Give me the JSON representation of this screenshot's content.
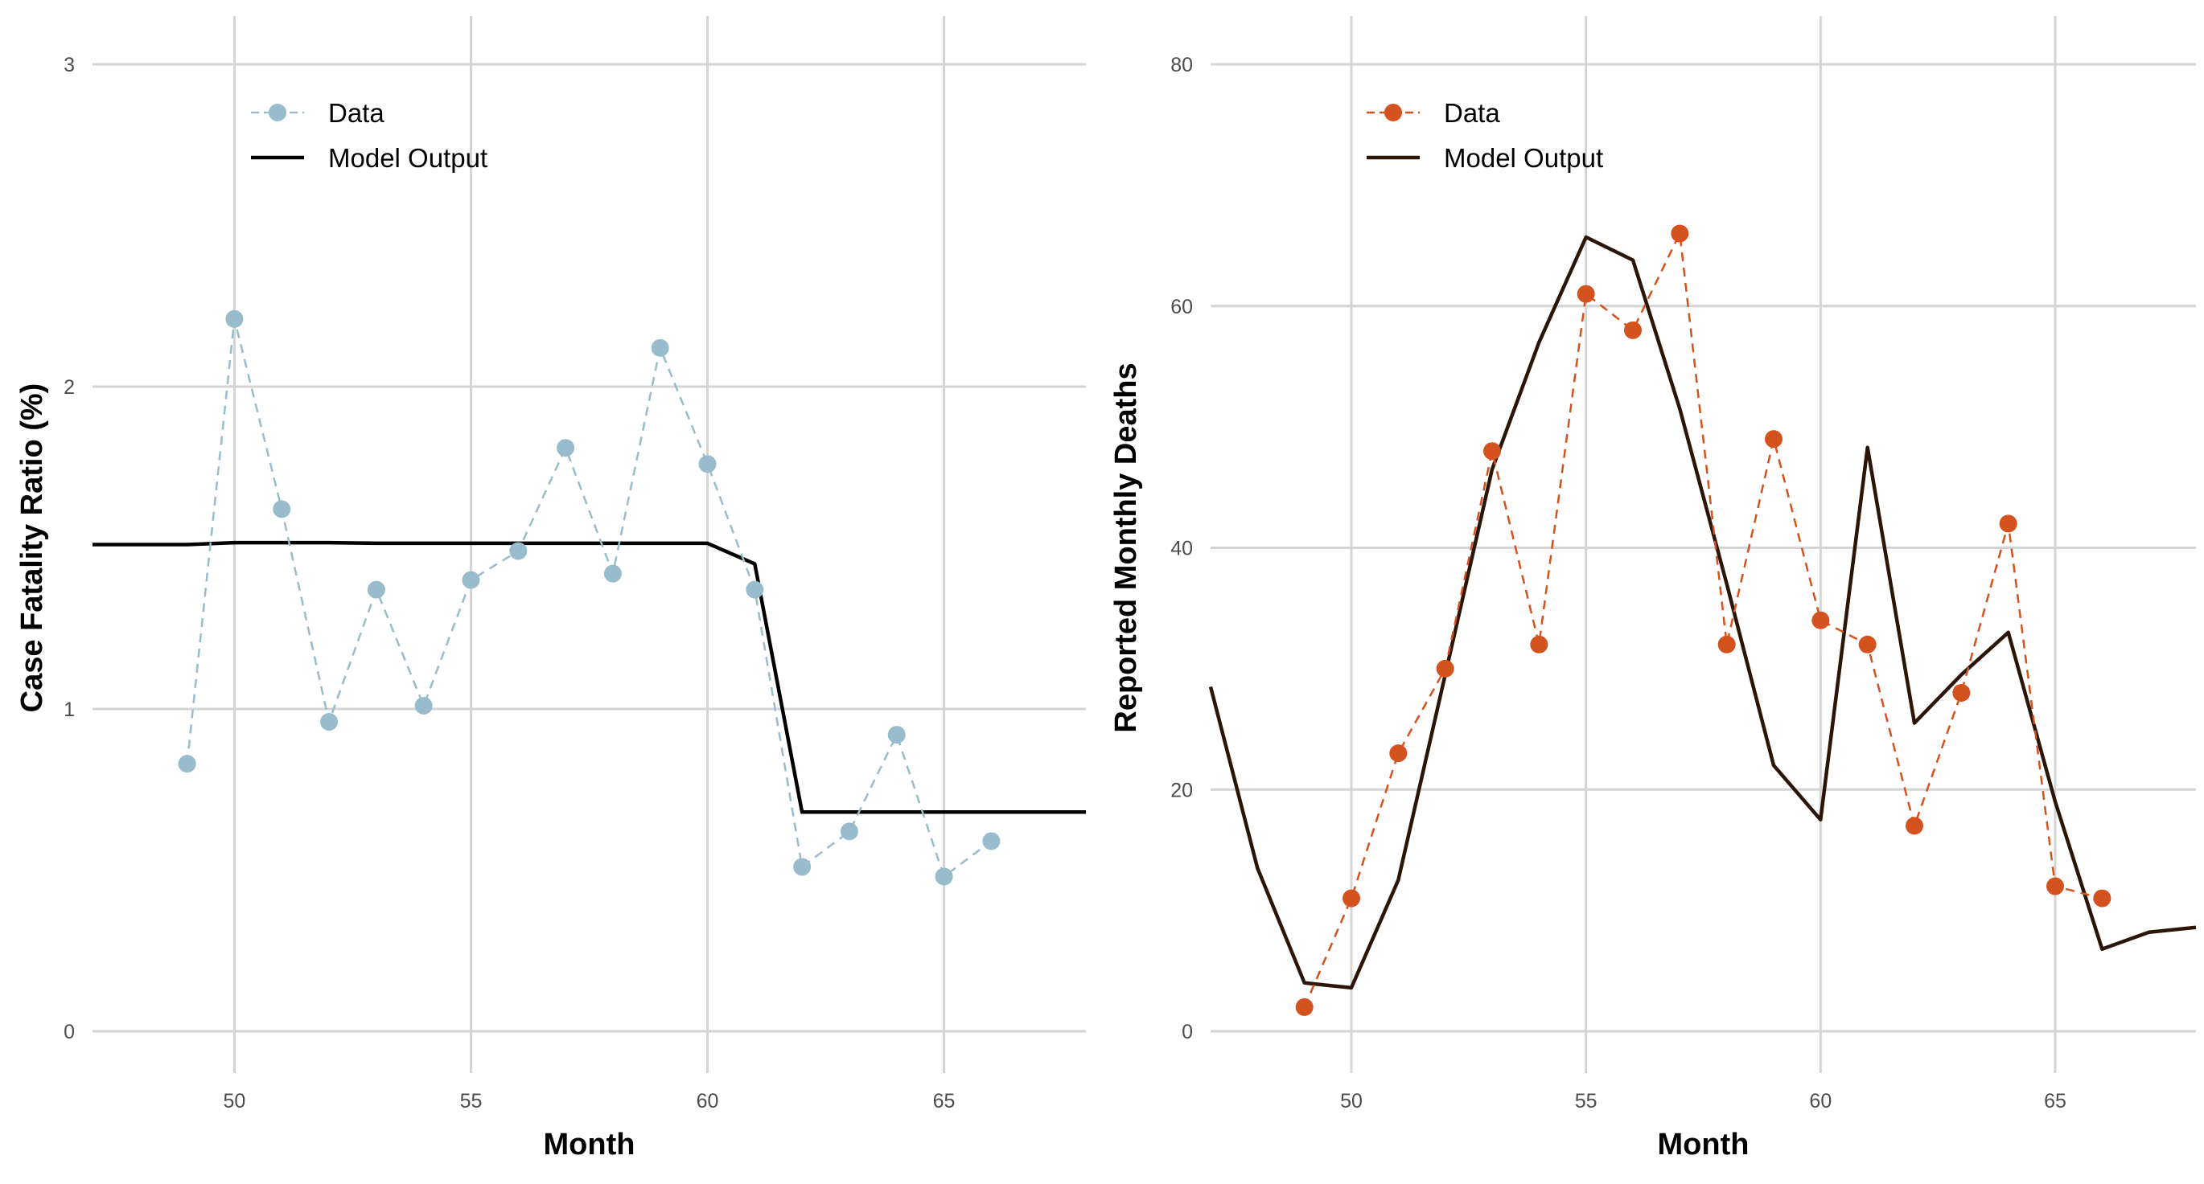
{
  "chart_data": [
    {
      "type": "line",
      "xlabel": "Month",
      "ylabel": "Case Fatality Ratio (%)",
      "xlim": [
        47,
        68
      ],
      "ylim": [
        0,
        3
      ],
      "xticks": [
        50,
        55,
        60,
        65
      ],
      "yticks": [
        0,
        1,
        2,
        3
      ],
      "grid": true,
      "legend_position": "top-left",
      "colors": {
        "data": "#98bccb",
        "model": "#000000"
      },
      "series": [
        {
          "name": "Data",
          "style": "points-dashed",
          "x": [
            49,
            50,
            51,
            52,
            53,
            54,
            55,
            56,
            57,
            58,
            59,
            60,
            61,
            62,
            63,
            64,
            65,
            66
          ],
          "y": [
            0.83,
            2.21,
            1.62,
            0.96,
            1.37,
            1.01,
            1.4,
            1.49,
            1.81,
            1.42,
            2.12,
            1.76,
            1.37,
            0.51,
            0.62,
            0.92,
            0.48,
            0.59
          ]
        },
        {
          "name": "Model Output",
          "style": "line",
          "x": [
            47,
            48,
            49,
            50,
            51,
            52,
            53,
            54,
            55,
            56,
            57,
            58,
            59,
            60,
            61,
            62,
            63,
            64,
            65,
            66,
            67,
            68
          ],
          "y": [
            1.51,
            1.51,
            1.51,
            1.516,
            1.516,
            1.516,
            1.514,
            1.514,
            1.514,
            1.514,
            1.514,
            1.514,
            1.514,
            1.514,
            1.45,
            0.68,
            0.68,
            0.68,
            0.68,
            0.68,
            0.68,
            0.68
          ]
        }
      ]
    },
    {
      "type": "line",
      "xlabel": "Month",
      "ylabel": "Reported Monthly Deaths",
      "xlim": [
        47,
        68
      ],
      "ylim": [
        0,
        80
      ],
      "xticks": [
        50,
        55,
        60,
        65
      ],
      "yticks": [
        0,
        20,
        40,
        60,
        80
      ],
      "grid": true,
      "legend_position": "top-left",
      "colors": {
        "data": "#d4521e",
        "model": "#2b1506"
      },
      "series": [
        {
          "name": "Data",
          "style": "points-dashed",
          "x": [
            49,
            50,
            51,
            52,
            53,
            54,
            55,
            56,
            57,
            58,
            59,
            60,
            61,
            62,
            63,
            64,
            65,
            66
          ],
          "y": [
            2,
            11,
            23,
            30,
            48,
            32,
            61,
            58,
            66,
            32,
            49,
            34,
            32,
            17,
            28,
            42,
            12,
            11
          ]
        },
        {
          "name": "Model Output",
          "style": "line",
          "x": [
            47,
            48,
            49,
            50,
            51,
            52,
            53,
            54,
            55,
            56,
            57,
            58,
            59,
            60,
            61,
            62,
            63,
            64,
            65,
            66,
            67,
            68
          ],
          "y": [
            28.5,
            13.5,
            4.0,
            3.6,
            12.5,
            29.5,
            46.5,
            57.0,
            65.7,
            63.8,
            51.5,
            37.0,
            22.0,
            17.5,
            48.3,
            25.5,
            29.5,
            33.0,
            19.0,
            6.8,
            8.2,
            8.6
          ]
        }
      ]
    }
  ]
}
